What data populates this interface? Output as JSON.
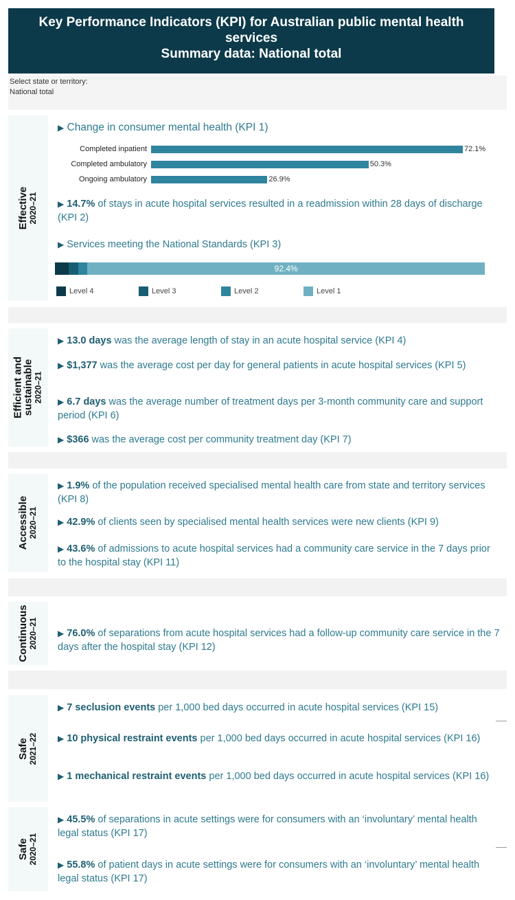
{
  "header": {
    "title_line1": "Key Performance Indicators (KPI) for Australian public mental health services",
    "title_line2": "Summary data: National total"
  },
  "filter": {
    "label": "Select state or territory:",
    "value": "National total"
  },
  "colors": {
    "level4": "#0c3a4a",
    "level3": "#175e73",
    "level2": "#2f849e",
    "level1": "#6fb1c2",
    "text": "#2e7a8f"
  },
  "effective": {
    "title": "Effective",
    "year": "2020–21",
    "kpi1_title": "Change in consumer mental health (KPI 1)",
    "kpi1_bars": [
      {
        "label": "Completed inpatient",
        "value": 72.1,
        "text": "72.1%"
      },
      {
        "label": "Completed ambulatory",
        "value": 50.3,
        "text": "50.3%"
      },
      {
        "label": "Ongoing ambulatory",
        "value": 26.9,
        "text": "26.9%"
      }
    ],
    "kpi2_bold": "14.7%",
    "kpi2_text": " of stays in acute hospital services resulted in a readmission within 28 days of discharge (KPI 2)",
    "kpi3_title": "Services meeting the National Standards (KPI 3)",
    "kpi3_segments": [
      {
        "name": "Level 4",
        "value": 3.2
      },
      {
        "name": "Level 3",
        "value": 2.2
      },
      {
        "name": "Level 2",
        "value": 2.1
      },
      {
        "name": "Level 1",
        "value": 92.4,
        "text": "92.4%"
      }
    ],
    "legend": [
      "Level 4",
      "Level 3",
      "Level 2",
      "Level 1"
    ]
  },
  "efficient": {
    "title": "Efficient and sustainable",
    "year": "2020–21",
    "items": [
      {
        "bold": "13.0 days",
        "text": " was the average length of stay in an acute hospital service (KPI 4)"
      },
      {
        "bold": "$1,377",
        "text": " was  the average cost per day for general patients in acute hospital services (KPI 5)"
      },
      {
        "bold": "6.7 days",
        "text": " was the average number of treatment days per 3-month community care and support period (KPI 6)"
      },
      {
        "bold": "$366",
        "text": " was the average cost per community treatment day (KPI 7)"
      }
    ]
  },
  "accessible": {
    "title": "Accessible",
    "year": "2020–21",
    "items": [
      {
        "bold": "1.9%",
        "text": " of the population received specialised mental health care from state and territory services (KPI 8)"
      },
      {
        "bold": "42.9%",
        "text": " of clients seen by specialised mental health services were new clients (KPI 9)"
      },
      {
        "bold": "43.6%",
        "text": " of admissions to acute hospital services had a community care service in the 7 days prior to the hospital stay (KPI 11)"
      }
    ]
  },
  "continuous": {
    "title": "Continuous",
    "year": "2020–21",
    "items": [
      {
        "bold": "76.0%",
        "text": " of separations from acute hospital services had a follow-up community care service in the 7 days after the hospital stay (KPI 12)"
      }
    ]
  },
  "safe1": {
    "title": "Safe",
    "year": "2021–22",
    "items": [
      {
        "bold": "7 seclusion events",
        "text": " per 1,000 bed days occurred in acute hospital services (KPI 15)"
      },
      {
        "bold": "10 physical restraint events",
        "text": " per 1,000 bed days occurred in acute hospital services (KPI 16)"
      },
      {
        "bold": "1 mechanical restraint events",
        "text": " per 1,000 bed days occurred in acute hospital services (KPI 16)"
      }
    ]
  },
  "safe2": {
    "title": "Safe",
    "year": "2020–21",
    "items": [
      {
        "bold": "45.5%",
        "text": " of separations in acute settings were for consumers with an ‘involuntary’ mental health legal status (KPI 17)"
      },
      {
        "bold": "55.8%",
        "text": " of patient days in acute settings were for consumers with an ‘involuntary’ mental health legal status (KPI 17)"
      }
    ]
  }
}
